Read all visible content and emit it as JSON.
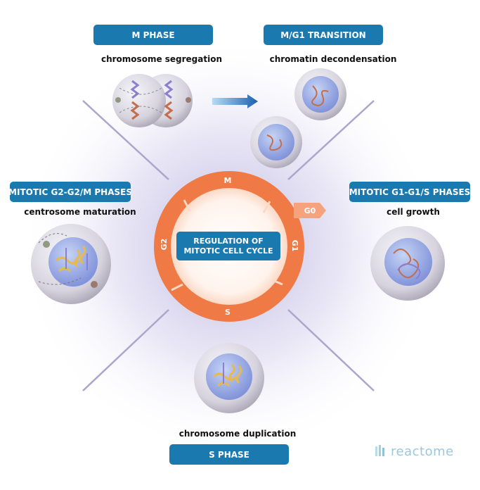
{
  "diagram": {
    "center": {
      "line1": "REGULATION OF",
      "line2": "MITOTIC CELL CYCLE"
    },
    "ring_phases": {
      "m": "M",
      "g1": "G1",
      "s": "S",
      "g2": "G2",
      "g0": "G0"
    },
    "panels": {
      "m_phase": {
        "title": "M PHASE",
        "caption": "chromosome segregation"
      },
      "m_g1": {
        "title": "M/G1 TRANSITION",
        "caption": "chromatin decondensation"
      },
      "g2_m": {
        "title": "MITOTIC G2-G2/M PHASES",
        "caption": "centrosome maturation"
      },
      "g1_s": {
        "title": "MITOTIC G1-G1/S PHASES",
        "caption": "cell growth"
      },
      "s_phase": {
        "title": "S PHASE",
        "caption": "chromosome duplication"
      }
    },
    "brand": "reactome",
    "colors": {
      "accent": "#1a7ab0",
      "ring": "#f07a45",
      "halo": "#b8b3dc"
    }
  }
}
